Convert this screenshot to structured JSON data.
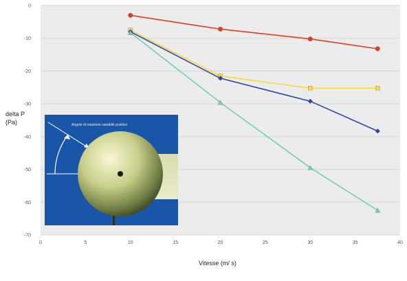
{
  "chart_data": {
    "type": "line",
    "title": "",
    "xlabel": "Vitesse (m/ s)",
    "ylabel": "delta P (Pa)",
    "xlim": [
      0,
      40
    ],
    "ylim": [
      -70,
      0
    ],
    "x_ticks": [
      "0",
      "5",
      "10",
      "15",
      "20",
      "25",
      "30",
      "35",
      "40"
    ],
    "y_ticks": [
      "0",
      "-10",
      "-20",
      "-30",
      "-40",
      "-50",
      "-60",
      "-70"
    ],
    "grid": "horizontal",
    "legend": "none",
    "series": [
      {
        "color": "#e33b1f",
        "marker": "circle",
        "points": [
          [
            10,
            -3
          ],
          [
            20,
            -7.2
          ],
          [
            30,
            -10.2
          ],
          [
            37.5,
            -13.2
          ]
        ]
      },
      {
        "color": "#ffd633",
        "marker": "square",
        "points": [
          [
            10,
            -7.5
          ],
          [
            20,
            -21.5
          ],
          [
            30,
            -25.2
          ],
          [
            37.5,
            -25.2
          ]
        ]
      },
      {
        "color": "#2a46a8",
        "marker": "diamond",
        "points": [
          [
            10,
            -8
          ],
          [
            20,
            -22.2
          ],
          [
            30,
            -29.2
          ],
          [
            37.5,
            -38.3
          ]
        ]
      },
      {
        "color": "#6fcfb8",
        "marker": "triangle",
        "points": [
          [
            10,
            -8.3
          ],
          [
            20,
            -29.6
          ],
          [
            30,
            -49.5
          ],
          [
            37.5,
            -62.5
          ]
        ]
      }
    ]
  },
  "inset": {
    "caption": "Angolo di rotazione variabile positivo"
  }
}
